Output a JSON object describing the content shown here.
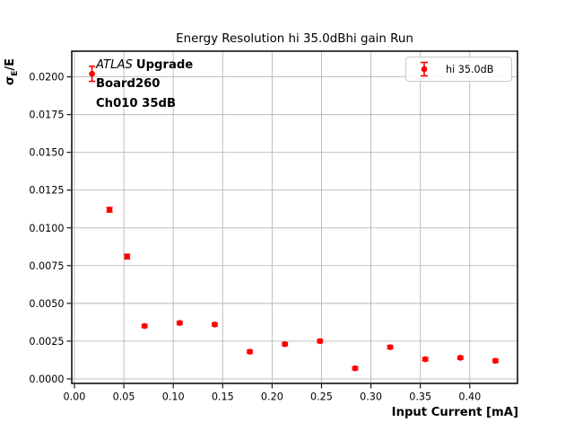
{
  "chart_data": {
    "type": "scatter",
    "title": "Energy Resolution hi 35.0dBhi gain Run",
    "xlabel": "Input Current [mA]",
    "ylabel": "σE/E",
    "ylabel_parts": {
      "sigma": "σ",
      "sub": "E",
      "rest": "/E"
    },
    "annotation": {
      "experiment": "ATLAS",
      "label": "Upgrade",
      "line2": "Board260",
      "line3": "Ch010 35dB"
    },
    "legend": {
      "position": "upper-right",
      "entries": [
        "hi 35.0dB"
      ]
    },
    "series": [
      {
        "name": "hi 35.0dB",
        "color": "#ff0000",
        "marker": "circle-with-errorbar",
        "x": [
          0.0178,
          0.0355,
          0.0533,
          0.071,
          0.1065,
          0.142,
          0.1775,
          0.213,
          0.2485,
          0.284,
          0.3195,
          0.355,
          0.3905,
          0.426
        ],
        "y": [
          0.0202,
          0.0112,
          0.0081,
          0.0035,
          0.0037,
          0.0036,
          0.0018,
          0.0023,
          0.0025,
          0.0007,
          0.0021,
          0.0013,
          0.0014,
          0.0012
        ],
        "yerr": [
          0.0005,
          0.00015,
          0.00015,
          0.0001,
          0.0001,
          0.0001,
          0.0001,
          0.0001,
          0.0001,
          0.0001,
          0.0001,
          0.0001,
          0.0001,
          0.0001
        ]
      }
    ],
    "axes": {
      "xlim": [
        -0.0027,
        0.4483
      ],
      "ylim": [
        -0.0003,
        0.0217
      ],
      "x_tick_values": [
        0.0,
        0.05,
        0.1,
        0.15,
        0.2,
        0.25,
        0.3,
        0.35,
        0.4
      ],
      "x_tick_labels": [
        "0.00",
        "0.05",
        "0.10",
        "0.15",
        "0.20",
        "0.25",
        "0.30",
        "0.35",
        "0.40"
      ],
      "y_tick_values": [
        0.0,
        0.0025,
        0.005,
        0.0075,
        0.01,
        0.0125,
        0.015,
        0.0175,
        0.02
      ],
      "y_tick_labels": [
        "0.0000",
        "0.0025",
        "0.0050",
        "0.0075",
        "0.0100",
        "0.0125",
        "0.0150",
        "0.0175",
        "0.0200"
      ],
      "grid": true,
      "grid_color": "#b8b8b8",
      "spine_color": "#000000"
    }
  }
}
